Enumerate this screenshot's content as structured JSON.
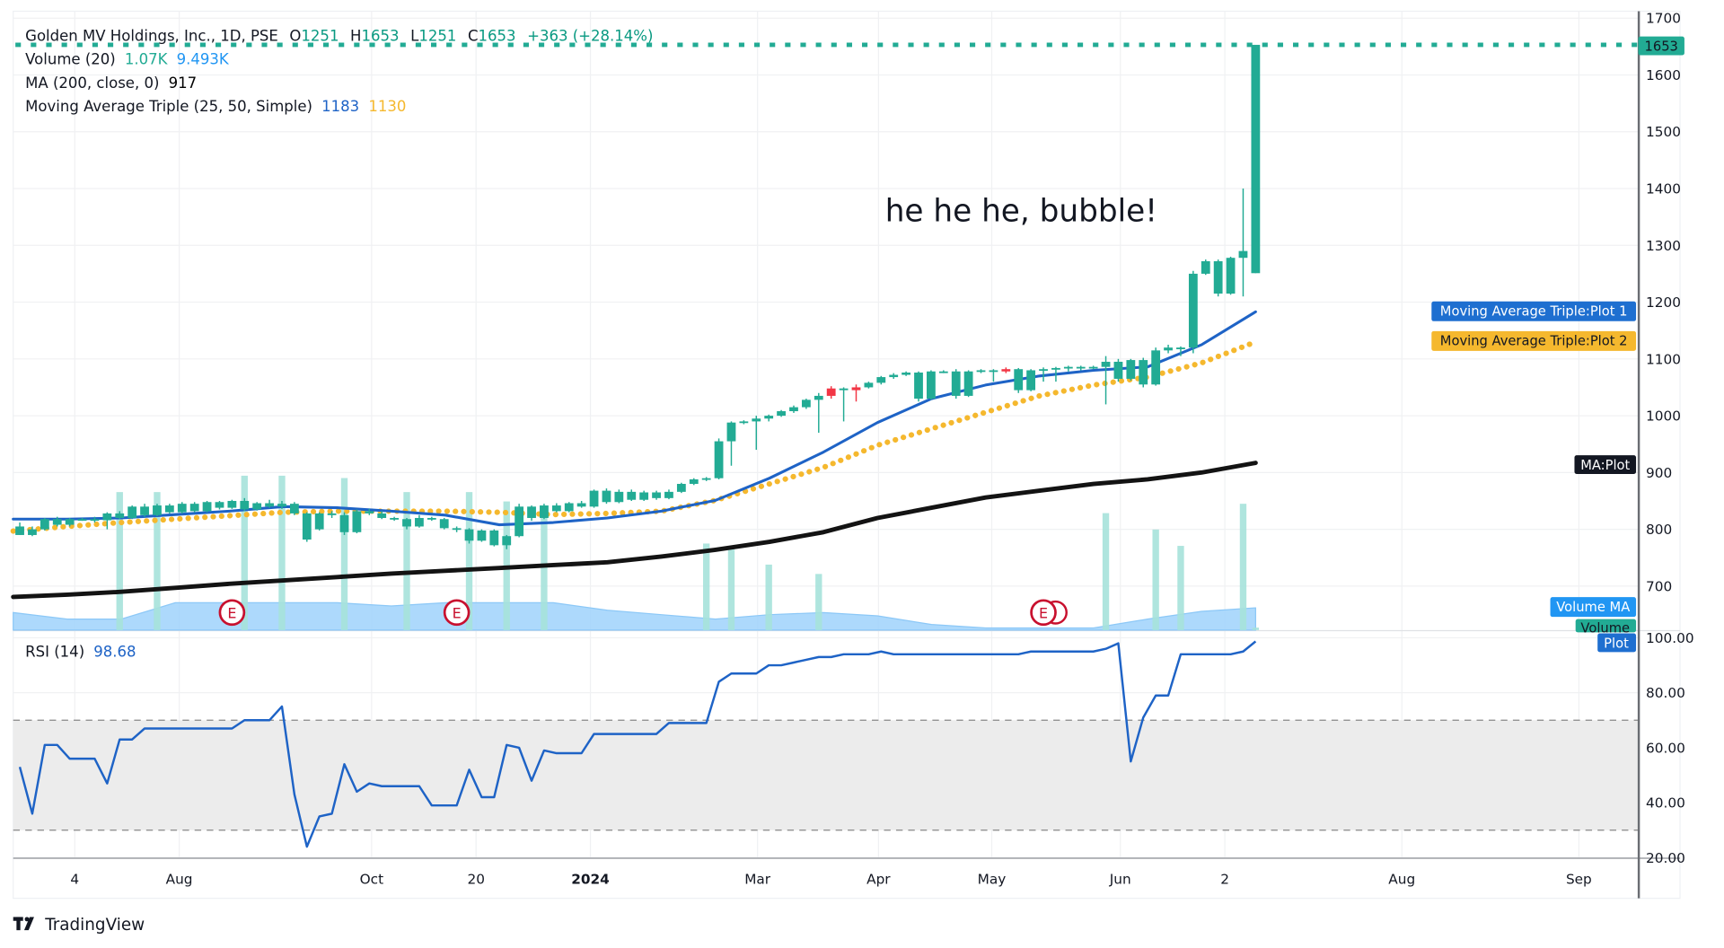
{
  "legend": {
    "symbol": "Golden MV Holdings, Inc., 1D, PSE",
    "o_label": "O",
    "o": "1251",
    "h_label": "H",
    "h": "1653",
    "l_label": "L",
    "l": "1251",
    "c_label": "C",
    "c": "1653",
    "change": "+363 (+28.14%)",
    "volume_label": "Volume (20)",
    "volume_value": "1.07K",
    "volume_ma_value": "9.493K",
    "ma_label": "MA (200, close, 0)",
    "ma_value": "917",
    "mat_label": "Moving Average Triple (25, 50, Simple)",
    "mat_plot1": "1183",
    "mat_plot2": "1130",
    "rsi_label": "RSI (14)",
    "rsi_value": "98.68"
  },
  "annotation": "he he he, bubble!",
  "tags": {
    "last_price": "1653",
    "plot1": "Moving Average Triple:Plot 1",
    "plot2": "Moving Average Triple:Plot 2",
    "ma": "MA:Plot",
    "volume_ma": "Volume MA",
    "volume": "Volume",
    "rsi_plot": "Plot"
  },
  "earnings_marker": "E",
  "branding": "TradingView",
  "colors": {
    "up": "#22ab94",
    "down": "#f23645",
    "ma25": "#1e63c6",
    "ma50": "#f5b82e",
    "ma200": "#131313",
    "rsi": "#1e63c6",
    "volume": "#a6e2da",
    "volume_ma": "#9fd2fb",
    "earnings": "#c8102e",
    "text": "#131722",
    "legend_value": "#089981"
  },
  "chart_data": {
    "type": "candlestick",
    "price_axis": {
      "ticks": [
        "1700",
        "1600",
        "1500",
        "1400",
        "1300",
        "1200",
        "1100",
        "1000",
        "900",
        "800",
        "700"
      ],
      "range": [
        640,
        1720
      ]
    },
    "rsi_axis": {
      "ticks": [
        "100.00",
        "80.00",
        "60.00",
        "40.00",
        "20.00"
      ],
      "range": [
        20,
        100
      ],
      "bands": [
        30,
        70
      ]
    },
    "time_axis": {
      "ticks": [
        "4",
        "Aug",
        "Oct",
        "20",
        "2024",
        "Mar",
        "Apr",
        "May",
        "Jun",
        "2",
        "Aug",
        "Sep"
      ],
      "bold": [
        "2024"
      ]
    },
    "grid": true,
    "last_price": 1653,
    "candles_ohlc": [
      [
        805,
        812,
        790,
        790
      ],
      [
        790,
        805,
        788,
        800
      ],
      [
        800,
        820,
        798,
        818
      ],
      [
        818,
        822,
        805,
        808
      ],
      [
        808,
        820,
        805,
        818
      ],
      [
        818,
        820,
        815,
        818
      ],
      [
        818,
        822,
        812,
        816
      ],
      [
        816,
        830,
        800,
        828
      ],
      [
        828,
        832,
        818,
        820
      ],
      [
        820,
        842,
        818,
        840
      ],
      [
        840,
        845,
        822,
        825
      ],
      [
        825,
        845,
        823,
        842
      ],
      [
        842,
        845,
        828,
        830
      ],
      [
        830,
        848,
        828,
        845
      ],
      [
        845,
        848,
        830,
        832
      ],
      [
        832,
        850,
        830,
        848
      ],
      [
        848,
        850,
        835,
        838
      ],
      [
        838,
        852,
        836,
        850
      ],
      [
        850,
        855,
        832,
        835
      ],
      [
        835,
        848,
        833,
        846
      ],
      [
        846,
        852,
        838,
        840
      ],
      [
        840,
        850,
        836,
        845
      ],
      [
        845,
        848,
        825,
        828
      ],
      [
        828,
        830,
        778,
        782
      ],
      [
        800,
        830,
        798,
        828
      ],
      [
        828,
        832,
        820,
        825
      ],
      [
        825,
        830,
        790,
        795
      ],
      [
        795,
        835,
        793,
        832
      ],
      [
        832,
        836,
        825,
        828
      ],
      [
        828,
        832,
        818,
        820
      ],
      [
        820,
        822,
        815,
        818
      ],
      [
        818,
        820,
        800,
        805
      ],
      [
        805,
        825,
        803,
        820
      ],
      [
        820,
        822,
        815,
        818
      ],
      [
        818,
        820,
        800,
        802
      ],
      [
        802,
        805,
        795,
        800
      ],
      [
        800,
        802,
        775,
        780
      ],
      [
        780,
        800,
        778,
        798
      ],
      [
        798,
        800,
        770,
        772
      ],
      [
        772,
        790,
        765,
        788
      ],
      [
        788,
        845,
        786,
        840
      ],
      [
        840,
        842,
        815,
        820
      ],
      [
        820,
        845,
        818,
        842
      ],
      [
        842,
        846,
        830,
        832
      ],
      [
        832,
        848,
        830,
        846
      ],
      [
        846,
        850,
        838,
        840
      ],
      [
        840,
        870,
        838,
        868
      ],
      [
        868,
        872,
        845,
        848
      ],
      [
        848,
        870,
        846,
        866
      ],
      [
        866,
        870,
        850,
        852
      ],
      [
        852,
        868,
        850,
        865
      ],
      [
        865,
        868,
        852,
        855
      ],
      [
        855,
        870,
        853,
        866
      ],
      [
        866,
        882,
        864,
        880
      ],
      [
        880,
        890,
        878,
        888
      ],
      [
        888,
        892,
        885,
        890
      ],
      [
        890,
        960,
        888,
        955
      ],
      [
        955,
        990,
        912,
        988
      ],
      [
        988,
        992,
        985,
        990
      ],
      [
        990,
        1000,
        940,
        995
      ],
      [
        995,
        1002,
        990,
        1000
      ],
      [
        1000,
        1010,
        998,
        1008
      ],
      [
        1008,
        1018,
        1005,
        1015
      ],
      [
        1015,
        1030,
        1012,
        1028
      ],
      [
        1028,
        1040,
        970,
        1035
      ],
      [
        1035,
        1052,
        1030,
        1048
      ],
      [
        1048,
        1050,
        990,
        1045
      ],
      [
        1045,
        1055,
        1025,
        1050
      ],
      [
        1050,
        1060,
        1048,
        1058
      ],
      [
        1058,
        1070,
        1055,
        1068
      ],
      [
        1068,
        1075,
        1065,
        1072
      ],
      [
        1072,
        1078,
        1070,
        1076
      ],
      [
        1076,
        1078,
        1025,
        1030
      ],
      [
        1030,
        1080,
        1028,
        1078
      ],
      [
        1078,
        1080,
        1075,
        1078
      ],
      [
        1078,
        1082,
        1030,
        1035
      ],
      [
        1035,
        1080,
        1033,
        1078
      ],
      [
        1078,
        1082,
        1075,
        1080
      ],
      [
        1080,
        1082,
        1060,
        1078
      ],
      [
        1078,
        1085,
        1075,
        1082
      ],
      [
        1082,
        1084,
        1040,
        1045
      ],
      [
        1045,
        1082,
        1043,
        1080
      ],
      [
        1080,
        1085,
        1060,
        1082
      ],
      [
        1082,
        1086,
        1060,
        1084
      ],
      [
        1084,
        1088,
        1078,
        1086
      ],
      [
        1086,
        1088,
        1080,
        1085
      ],
      [
        1085,
        1088,
        1082,
        1086
      ],
      [
        1086,
        1105,
        1020,
        1095
      ],
      [
        1095,
        1100,
        1060,
        1065
      ],
      [
        1065,
        1100,
        1062,
        1098
      ],
      [
        1098,
        1102,
        1050,
        1055
      ],
      [
        1055,
        1120,
        1053,
        1115
      ],
      [
        1115,
        1125,
        1110,
        1120
      ],
      [
        1120,
        1122,
        1105,
        1120
      ],
      [
        1120,
        1255,
        1110,
        1250
      ],
      [
        1250,
        1275,
        1248,
        1272
      ],
      [
        1272,
        1275,
        1210,
        1215
      ],
      [
        1215,
        1280,
        1213,
        1278
      ],
      [
        1278,
        1400,
        1210,
        1290
      ],
      [
        1251,
        1653,
        1251,
        1653
      ]
    ],
    "red_bars": [
      65,
      67,
      79
    ],
    "ma25": [
      818,
      818,
      820,
      826,
      832,
      840,
      838,
      832,
      825,
      808,
      812,
      820,
      832,
      851,
      890,
      936,
      988,
      1030,
      1054,
      1070,
      1080,
      1086,
      1125,
      1183
    ],
    "ma50": [
      797,
      805,
      812,
      818,
      824,
      830,
      832,
      832,
      832,
      830,
      826,
      828,
      832,
      851,
      880,
      909,
      948,
      977,
      1006,
      1035,
      1054,
      1068,
      1093,
      1130
    ],
    "ma200": [
      681,
      685,
      690,
      697,
      704,
      710,
      716,
      722,
      727,
      732,
      737,
      742,
      752,
      764,
      778,
      795,
      820,
      838,
      856,
      868,
      880,
      888,
      900,
      917
    ],
    "volume_k": [
      {
        "bar": 8,
        "value": 59
      },
      {
        "bar": 11,
        "value": 59
      },
      {
        "bar": 18,
        "value": 66
      },
      {
        "bar": 21,
        "value": 66
      },
      {
        "bar": 26,
        "value": 65
      },
      {
        "bar": 31,
        "value": 59
      },
      {
        "bar": 36,
        "value": 59
      },
      {
        "bar": 39,
        "value": 55
      },
      {
        "bar": 42,
        "value": 52
      },
      {
        "bar": 55,
        "value": 37
      },
      {
        "bar": 57,
        "value": 36
      },
      {
        "bar": 60,
        "value": 28
      },
      {
        "bar": 64,
        "value": 24
      },
      {
        "bar": 87,
        "value": 50
      },
      {
        "bar": 91,
        "value": 43
      },
      {
        "bar": 93,
        "value": 36
      },
      {
        "bar": 98,
        "value": 54
      },
      {
        "bar": 99,
        "value": 1.07
      }
    ],
    "volume_ma_k": [
      7.5,
      4.7,
      4.7,
      11.7,
      11.7,
      11.7,
      11.7,
      10.3,
      11.7,
      11.7,
      11.7,
      8.5,
      6.6,
      4.7,
      6.6,
      7.5,
      6.1,
      2.4,
      0.9,
      0.9,
      0.9,
      4.7,
      8.0,
      9.493
    ],
    "earnings_bars": [
      17,
      35,
      82
    ],
    "rsi": [
      53,
      36,
      61,
      61,
      56,
      56,
      56,
      47,
      63,
      63,
      67,
      67,
      67,
      67,
      67,
      67,
      67,
      67,
      70,
      70,
      70,
      75,
      43,
      24,
      35,
      36,
      54,
      44,
      47,
      46,
      46,
      46,
      46,
      39,
      39,
      39,
      52,
      42,
      42,
      61,
      60,
      48,
      59,
      58,
      58,
      58,
      65,
      65,
      65,
      65,
      65,
      65,
      69,
      69,
      69,
      69,
      84,
      87,
      87,
      87,
      90,
      90,
      91,
      92,
      93,
      93,
      94,
      94,
      94,
      95,
      94,
      94,
      94,
      94,
      94,
      94,
      94,
      94,
      94,
      94,
      94,
      95,
      95,
      95,
      95,
      95,
      95,
      96,
      98,
      55,
      71,
      79,
      79,
      94,
      94,
      94,
      94,
      94,
      95,
      98.68
    ]
  }
}
